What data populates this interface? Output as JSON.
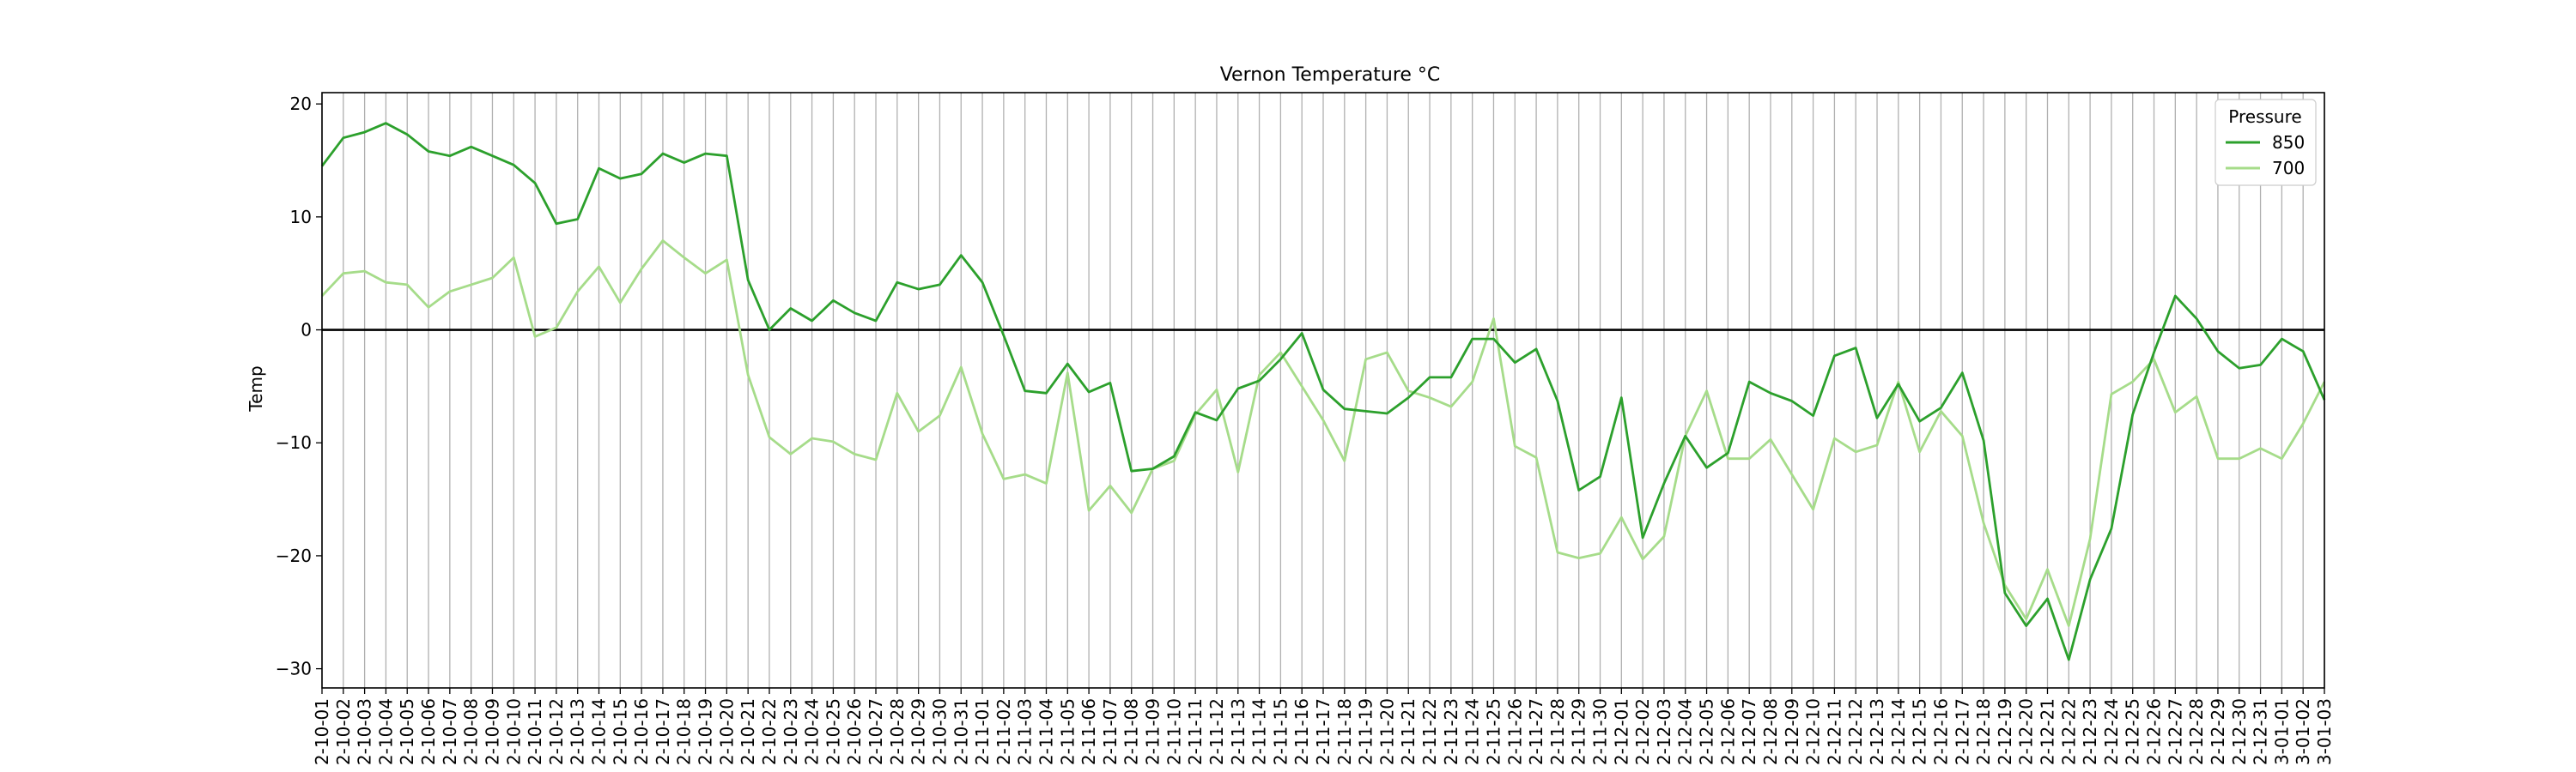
{
  "chart_data": {
    "type": "line",
    "title": "Vernon Temperature °C",
    "xlabel": "",
    "ylabel": "Temp",
    "ylim": [
      -31.7,
      21
    ],
    "y_ticks": [
      20,
      10,
      0,
      -10,
      -20,
      -30
    ],
    "y_tick_labels": [
      "20",
      "10",
      "0",
      "−10",
      "−20",
      "−30"
    ],
    "grid": "vertical",
    "zero_line": 0,
    "legend": {
      "title": "Pressure",
      "placement": "upper-right"
    },
    "categories": [
      "2-10-01",
      "2-10-02",
      "2-10-03",
      "2-10-04",
      "2-10-05",
      "2-10-06",
      "2-10-07",
      "2-10-08",
      "2-10-09",
      "2-10-10",
      "2-10-11",
      "2-10-12",
      "2-10-13",
      "2-10-14",
      "2-10-15",
      "2-10-16",
      "2-10-17",
      "2-10-18",
      "2-10-19",
      "2-10-20",
      "2-10-21",
      "2-10-22",
      "2-10-23",
      "2-10-24",
      "2-10-25",
      "2-10-26",
      "2-10-27",
      "2-10-28",
      "2-10-29",
      "2-10-30",
      "2-10-31",
      "2-11-01",
      "2-11-02",
      "2-11-03",
      "2-11-04",
      "2-11-05",
      "2-11-06",
      "2-11-07",
      "2-11-08",
      "2-11-09",
      "2-11-10",
      "2-11-11",
      "2-11-12",
      "2-11-13",
      "2-11-14",
      "2-11-15",
      "2-11-16",
      "2-11-17",
      "2-11-18",
      "2-11-19",
      "2-11-20",
      "2-11-21",
      "2-11-22",
      "2-11-23",
      "2-11-24",
      "2-11-25",
      "2-11-26",
      "2-11-27",
      "2-11-28",
      "2-11-29",
      "2-11-30",
      "2-12-01",
      "2-12-02",
      "2-12-03",
      "2-12-04",
      "2-12-05",
      "2-12-06",
      "2-12-07",
      "2-12-08",
      "2-12-09",
      "2-12-10",
      "2-12-11",
      "2-12-12",
      "2-12-13",
      "2-12-14",
      "2-12-15",
      "2-12-16",
      "2-12-17",
      "2-12-18",
      "2-12-19",
      "2-12-20",
      "2-12-21",
      "2-12-22",
      "2-12-23",
      "2-12-24",
      "2-12-25",
      "2-12-26",
      "2-12-27",
      "2-12-28",
      "2-12-29",
      "2-12-30",
      "2-12-31",
      "3-01-01",
      "3-01-02",
      "3-01-03"
    ],
    "series": [
      {
        "name": "850",
        "color": "#2ca02c",
        "values": [
          14.5,
          17.0,
          17.5,
          18.3,
          17.3,
          15.8,
          15.4,
          16.2,
          15.4,
          14.6,
          13.0,
          9.4,
          9.8,
          14.3,
          13.4,
          13.8,
          15.6,
          14.8,
          15.6,
          15.4,
          4.4,
          0.0,
          1.9,
          0.8,
          2.6,
          1.5,
          0.8,
          4.2,
          3.6,
          4.0,
          6.6,
          4.2,
          -0.5,
          -5.4,
          -5.6,
          -3.0,
          -5.5,
          -4.7,
          -12.5,
          -12.3,
          -11.2,
          -7.3,
          -8.0,
          -5.2,
          -4.5,
          -2.6,
          -0.3,
          -5.3,
          -7.0,
          -7.2,
          -7.4,
          -6.0,
          -4.2,
          -4.2,
          -0.8,
          -0.8,
          -2.9,
          -1.7,
          -6.3,
          -14.2,
          -13.0,
          -6.0,
          -18.4,
          -13.6,
          -9.4,
          -12.2,
          -10.9,
          -4.6,
          -5.6,
          -6.3,
          -7.6,
          -2.3,
          -1.6,
          -7.8,
          -4.8,
          -8.1,
          -6.9,
          -3.8,
          -9.8,
          -23.3,
          -26.2,
          -23.8,
          -29.2,
          -22.1,
          -17.6,
          -7.5,
          -2.0,
          3.0,
          1.0,
          -1.9,
          -3.4,
          -3.1,
          -0.8,
          -1.9,
          -6.2
        ]
      },
      {
        "name": "700",
        "color": "#a6dc8a",
        "values": [
          3.0,
          5.0,
          5.2,
          4.2,
          4.0,
          2.0,
          3.4,
          4.0,
          4.6,
          6.4,
          -0.6,
          0.2,
          3.4,
          5.6,
          2.4,
          5.4,
          7.9,
          6.4,
          5.0,
          6.2,
          -4.0,
          -9.5,
          -11.0,
          -9.6,
          -9.9,
          -11.0,
          -11.5,
          -5.6,
          -9.0,
          -7.6,
          -3.3,
          -9.2,
          -13.2,
          -12.8,
          -13.6,
          -3.8,
          -16.0,
          -13.8,
          -16.2,
          -12.3,
          -11.6,
          -7.5,
          -5.3,
          -12.6,
          -4.0,
          -2.0,
          -5.0,
          -8.0,
          -11.6,
          -2.6,
          -2.0,
          -5.4,
          -6.0,
          -6.8,
          -4.6,
          1.0,
          -10.3,
          -11.3,
          -19.7,
          -20.2,
          -19.8,
          -16.6,
          -20.3,
          -18.3,
          -9.4,
          -5.4,
          -11.4,
          -11.4,
          -9.7,
          -12.8,
          -15.9,
          -9.6,
          -10.8,
          -10.2,
          -4.6,
          -10.8,
          -7.2,
          -9.4,
          -17.1,
          -22.6,
          -25.6,
          -21.2,
          -26.2,
          -18.5,
          -5.7,
          -4.6,
          -2.6,
          -7.3,
          -5.9,
          -11.4,
          -11.4,
          -10.5,
          -11.4,
          -8.3,
          -4.6
        ]
      }
    ]
  }
}
